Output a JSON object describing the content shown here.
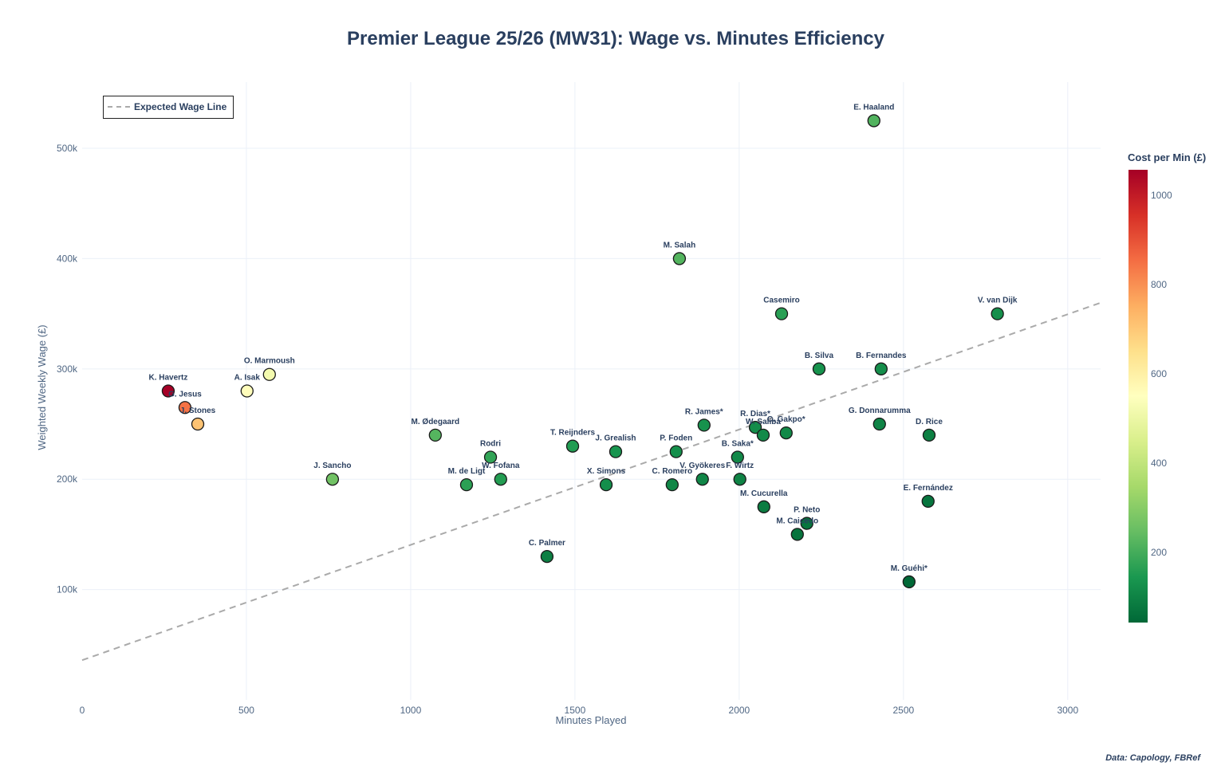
{
  "chart_data": {
    "type": "scatter",
    "title": "Premier League 25/26 (MW31): Wage vs. Minutes Efficiency",
    "xlabel": "Minutes Played",
    "ylabel": "Weighted Weekly Wage (£)",
    "xlim": [
      0,
      3100
    ],
    "ylim": [
      0,
      560000
    ],
    "x_ticks": [
      0,
      500,
      1000,
      1500,
      2000,
      2500,
      3000
    ],
    "y_ticks": [
      100000,
      200000,
      300000,
      400000,
      500000
    ],
    "y_tick_labels": [
      "100k",
      "200k",
      "300k",
      "400k",
      "500k"
    ],
    "grid": true,
    "legend": {
      "placement": "top-left",
      "entries": [
        "Expected Wage Line"
      ]
    },
    "expected_wage_line": {
      "name": "Expected Wage Line",
      "x": [
        0,
        3100
      ],
      "y": [
        36000,
        360000
      ],
      "color": "#aaaaaa",
      "dash": "dashed"
    },
    "colorbar": {
      "title": "Cost per Min (£)",
      "ticks": [
        200,
        400,
        600,
        800,
        1000
      ],
      "range": [
        43,
        1057
      ],
      "colorscale": [
        "#006837",
        "#1a9850",
        "#66bd63",
        "#a6d96a",
        "#d9ef8b",
        "#ffffbf",
        "#fee08b",
        "#fdae61",
        "#f46d43",
        "#d73027",
        "#a50026"
      ]
    },
    "points": [
      {
        "label": "E. Haaland",
        "x": 2410,
        "y": 525000
      },
      {
        "label": "M. Salah",
        "x": 1818,
        "y": 400000
      },
      {
        "label": "Casemiro",
        "x": 2129,
        "y": 350000
      },
      {
        "label": "V. van Dijk",
        "x": 2786,
        "y": 350000
      },
      {
        "label": "B. Silva",
        "x": 2243,
        "y": 300000
      },
      {
        "label": "B. Fernandes",
        "x": 2432,
        "y": 300000
      },
      {
        "label": "G. Donnarumma",
        "x": 2427,
        "y": 250000
      },
      {
        "label": "D. Rice",
        "x": 2578,
        "y": 240000
      },
      {
        "label": "E. Fernández",
        "x": 2575,
        "y": 180000
      },
      {
        "label": "M. Guéhi*",
        "x": 2517,
        "y": 107000
      },
      {
        "label": "P. Neto",
        "x": 2206,
        "y": 160000
      },
      {
        "label": "M. Caicedo",
        "x": 2177,
        "y": 150000
      },
      {
        "label": "M. Cucurella",
        "x": 2075,
        "y": 175000
      },
      {
        "label": "F. Wirtz",
        "x": 2002,
        "y": 200000
      },
      {
        "label": "B. Saka*",
        "x": 1995,
        "y": 220000
      },
      {
        "label": "V. Gyökeres",
        "x": 1888,
        "y": 200000
      },
      {
        "label": "C. Romero",
        "x": 1796,
        "y": 195000
      },
      {
        "label": "P. Foden",
        "x": 1808,
        "y": 225000
      },
      {
        "label": "R. James*",
        "x": 1893,
        "y": 249000
      },
      {
        "label": "R. Dias*",
        "x": 2049,
        "y": 247000
      },
      {
        "label": "W. Saliba",
        "x": 2073,
        "y": 240000
      },
      {
        "label": "C. Gakpo*",
        "x": 2143,
        "y": 242000
      },
      {
        "label": "J. Grealish",
        "x": 1624,
        "y": 225000
      },
      {
        "label": "X. Simons",
        "x": 1595,
        "y": 195000
      },
      {
        "label": "T. Reijnders",
        "x": 1493,
        "y": 230000
      },
      {
        "label": "C. Palmer",
        "x": 1415,
        "y": 130000
      },
      {
        "label": "W. Fofana",
        "x": 1274,
        "y": 200000
      },
      {
        "label": "M. de Ligt",
        "x": 1170,
        "y": 195000
      },
      {
        "label": "Rodri",
        "x": 1243,
        "y": 220000
      },
      {
        "label": "M. Ødegaard",
        "x": 1075,
        "y": 240000
      },
      {
        "label": "J. Sancho",
        "x": 762,
        "y": 200000
      },
      {
        "label": "O. Marmoush",
        "x": 570,
        "y": 295000
      },
      {
        "label": "A. Isak",
        "x": 502,
        "y": 280000
      },
      {
        "label": "K. Havertz",
        "x": 262,
        "y": 280000
      },
      {
        "label": "G. Jesus",
        "x": 313,
        "y": 265000
      },
      {
        "label": "J. Stones",
        "x": 352,
        "y": 250000
      }
    ]
  },
  "source": "Data: Capology, FBRef"
}
